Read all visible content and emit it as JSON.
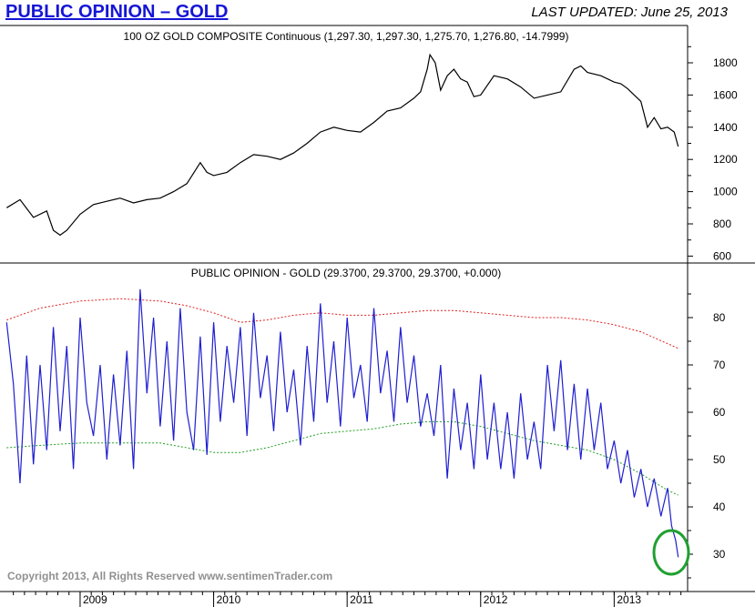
{
  "header": {
    "title": "PUBLIC OPINION – GOLD",
    "last_updated": "LAST UPDATED:  June 25, 2013"
  },
  "copyright": "Copyright 2013, All Rights Reserved  www.sentimenTrader.com",
  "colors": {
    "title_blue": "#1515d6",
    "price_line": "#000000",
    "opinion_line": "#1f1fd0",
    "upper_band": "#e02020",
    "lower_band": "#20a020",
    "highlight_circle": "#20a030"
  },
  "chart_data": [
    {
      "type": "line",
      "title": "100 OZ GOLD COMPOSITE Continuous (1,297.30, 1,297.30, 1,275.70, 1,276.80, -14.7999)",
      "ylim": [
        560,
        1960
      ],
      "y_ticks": [
        "600",
        "800",
        "1000",
        "1200",
        "1400",
        "1600",
        "1800"
      ],
      "x": [
        2008.45,
        2008.55,
        2008.65,
        2008.75,
        2008.8,
        2008.85,
        2008.9,
        2009.0,
        2009.1,
        2009.2,
        2009.3,
        2009.4,
        2009.5,
        2009.6,
        2009.7,
        2009.8,
        2009.9,
        2009.95,
        2010.0,
        2010.1,
        2010.2,
        2010.3,
        2010.4,
        2010.5,
        2010.6,
        2010.7,
        2010.8,
        2010.9,
        2011.0,
        2011.1,
        2011.2,
        2011.3,
        2011.4,
        2011.5,
        2011.55,
        2011.6,
        2011.62,
        2011.66,
        2011.7,
        2011.75,
        2011.8,
        2011.85,
        2011.9,
        2011.95,
        2012.0,
        2012.1,
        2012.2,
        2012.3,
        2012.4,
        2012.5,
        2012.6,
        2012.7,
        2012.75,
        2012.8,
        2012.9,
        2013.0,
        2013.05,
        2013.1,
        2013.15,
        2013.2,
        2013.25,
        2013.3,
        2013.35,
        2013.4,
        2013.45,
        2013.48
      ],
      "values": [
        900,
        950,
        840,
        880,
        760,
        730,
        760,
        860,
        920,
        940,
        960,
        930,
        950,
        960,
        1000,
        1050,
        1180,
        1120,
        1100,
        1120,
        1180,
        1230,
        1220,
        1200,
        1240,
        1300,
        1370,
        1400,
        1380,
        1370,
        1430,
        1500,
        1520,
        1580,
        1620,
        1760,
        1850,
        1800,
        1630,
        1720,
        1760,
        1700,
        1680,
        1590,
        1600,
        1720,
        1700,
        1650,
        1580,
        1600,
        1620,
        1760,
        1780,
        1740,
        1720,
        1680,
        1670,
        1640,
        1600,
        1560,
        1400,
        1460,
        1390,
        1400,
        1370,
        1280
      ],
      "x_ticks": [
        "2009",
        "2010",
        "2011",
        "2012",
        "2013"
      ]
    },
    {
      "type": "line",
      "title": "PUBLIC OPINION - GOLD (29.3700, 29.3700, 29.3700, +0.000)",
      "ylim": [
        25,
        90
      ],
      "y_ticks": [
        "30",
        "40",
        "50",
        "60",
        "70",
        "80"
      ],
      "x_ticks": [
        "2009",
        "2010",
        "2011",
        "2012",
        "2013"
      ],
      "series": [
        {
          "x": [
            2008.45,
            2008.5,
            2008.55,
            2008.6,
            2008.65,
            2008.7,
            2008.75,
            2008.8,
            2008.85,
            2008.9,
            2008.95,
            2009.0,
            2009.05,
            2009.1,
            2009.15,
            2009.2,
            2009.25,
            2009.3,
            2009.35,
            2009.4,
            2009.45,
            2009.5,
            2009.55,
            2009.6,
            2009.65,
            2009.7,
            2009.75,
            2009.8,
            2009.85,
            2009.9,
            2009.95,
            2010.0,
            2010.05,
            2010.1,
            2010.15,
            2010.2,
            2010.25,
            2010.3,
            2010.35,
            2010.4,
            2010.45,
            2010.5,
            2010.55,
            2010.6,
            2010.65,
            2010.7,
            2010.75,
            2010.8,
            2010.85,
            2010.9,
            2010.95,
            2011.0,
            2011.05,
            2011.1,
            2011.15,
            2011.2,
            2011.25,
            2011.3,
            2011.35,
            2011.4,
            2011.45,
            2011.5,
            2011.55,
            2011.6,
            2011.65,
            2011.7,
            2011.75,
            2011.8,
            2011.85,
            2011.9,
            2011.95,
            2012.0,
            2012.05,
            2012.1,
            2012.15,
            2012.2,
            2012.25,
            2012.3,
            2012.35,
            2012.4,
            2012.45,
            2012.5,
            2012.55,
            2012.6,
            2012.65,
            2012.7,
            2012.75,
            2012.8,
            2012.85,
            2012.9,
            2012.95,
            2013.0,
            2013.05,
            2013.1,
            2013.15,
            2013.2,
            2013.25,
            2013.3,
            2013.35,
            2013.4,
            2013.43,
            2013.46,
            2013.48
          ],
          "values": [
            79,
            66,
            45,
            72,
            49,
            70,
            52,
            78,
            56,
            74,
            48,
            80,
            62,
            55,
            70,
            50,
            68,
            53,
            73,
            48,
            86,
            64,
            80,
            57,
            75,
            54,
            82,
            60,
            52,
            76,
            51,
            79,
            58,
            74,
            62,
            78,
            55,
            81,
            63,
            72,
            56,
            77,
            60,
            69,
            53,
            74,
            58,
            83,
            62,
            75,
            57,
            80,
            63,
            70,
            58,
            82,
            64,
            73,
            58,
            78,
            62,
            72,
            57,
            64,
            55,
            70,
            46,
            65,
            52,
            62,
            48,
            68,
            50,
            62,
            48,
            60,
            46,
            64,
            50,
            58,
            48,
            70,
            56,
            71,
            52,
            66,
            50,
            65,
            52,
            62,
            48,
            54,
            45,
            52,
            42,
            48,
            40,
            46,
            38,
            44,
            36,
            33,
            29.37
          ]
        },
        {
          "x": [
            2008.45,
            2008.7,
            2009.0,
            2009.3,
            2009.6,
            2009.8,
            2010.0,
            2010.2,
            2010.4,
            2010.6,
            2010.8,
            2011.0,
            2011.2,
            2011.4,
            2011.6,
            2011.8,
            2012.0,
            2012.2,
            2012.4,
            2012.6,
            2012.8,
            2013.0,
            2013.2,
            2013.4,
            2013.48
          ],
          "values": [
            79.5,
            82,
            83.5,
            84,
            83.5,
            82.5,
            81,
            79,
            79.5,
            80.5,
            81,
            80.5,
            80.5,
            81,
            81.5,
            81.5,
            81,
            80.5,
            80,
            80,
            79.5,
            78.5,
            77,
            74.5,
            73.5
          ]
        },
        {
          "x": [
            2008.45,
            2008.7,
            2009.0,
            2009.3,
            2009.6,
            2009.8,
            2010.0,
            2010.2,
            2010.4,
            2010.6,
            2010.8,
            2011.0,
            2011.2,
            2011.4,
            2011.6,
            2011.8,
            2012.0,
            2012.2,
            2012.4,
            2012.6,
            2012.8,
            2013.0,
            2013.2,
            2013.4,
            2013.48
          ],
          "values": [
            52.5,
            53,
            53.5,
            53.5,
            53.5,
            52.5,
            51.5,
            51.5,
            52.5,
            54,
            55.5,
            56,
            56.5,
            57.5,
            58,
            58,
            57,
            55.5,
            54,
            53,
            52,
            50,
            47,
            43.5,
            42.5
          ]
        }
      ]
    }
  ]
}
